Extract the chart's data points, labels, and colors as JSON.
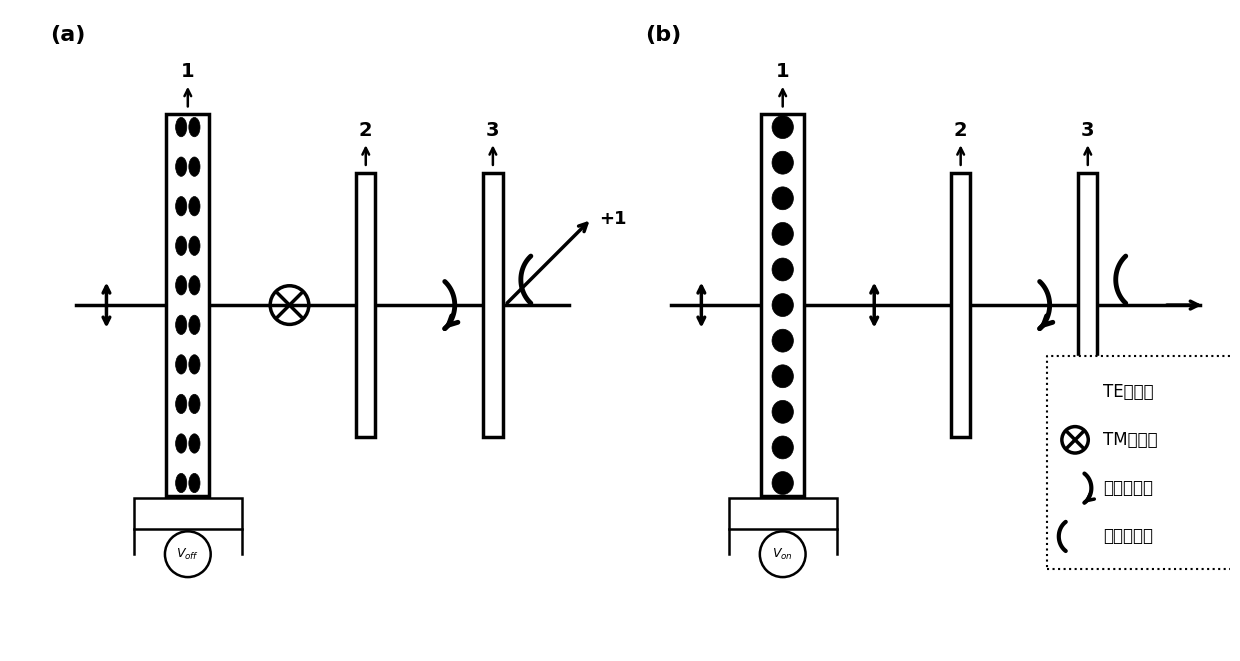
{
  "bg_color": "#ffffff",
  "line_color": "#000000",
  "panel_a_label": "(a)",
  "panel_b_label": "(b)",
  "legend_items": [
    {
      "text": "TE线偏光"
    },
    {
      "text": "TM线偏光"
    },
    {
      "text": "左旋圆偏光"
    },
    {
      "text": "右旋圆偏光"
    }
  ],
  "plus1_label": "+1"
}
